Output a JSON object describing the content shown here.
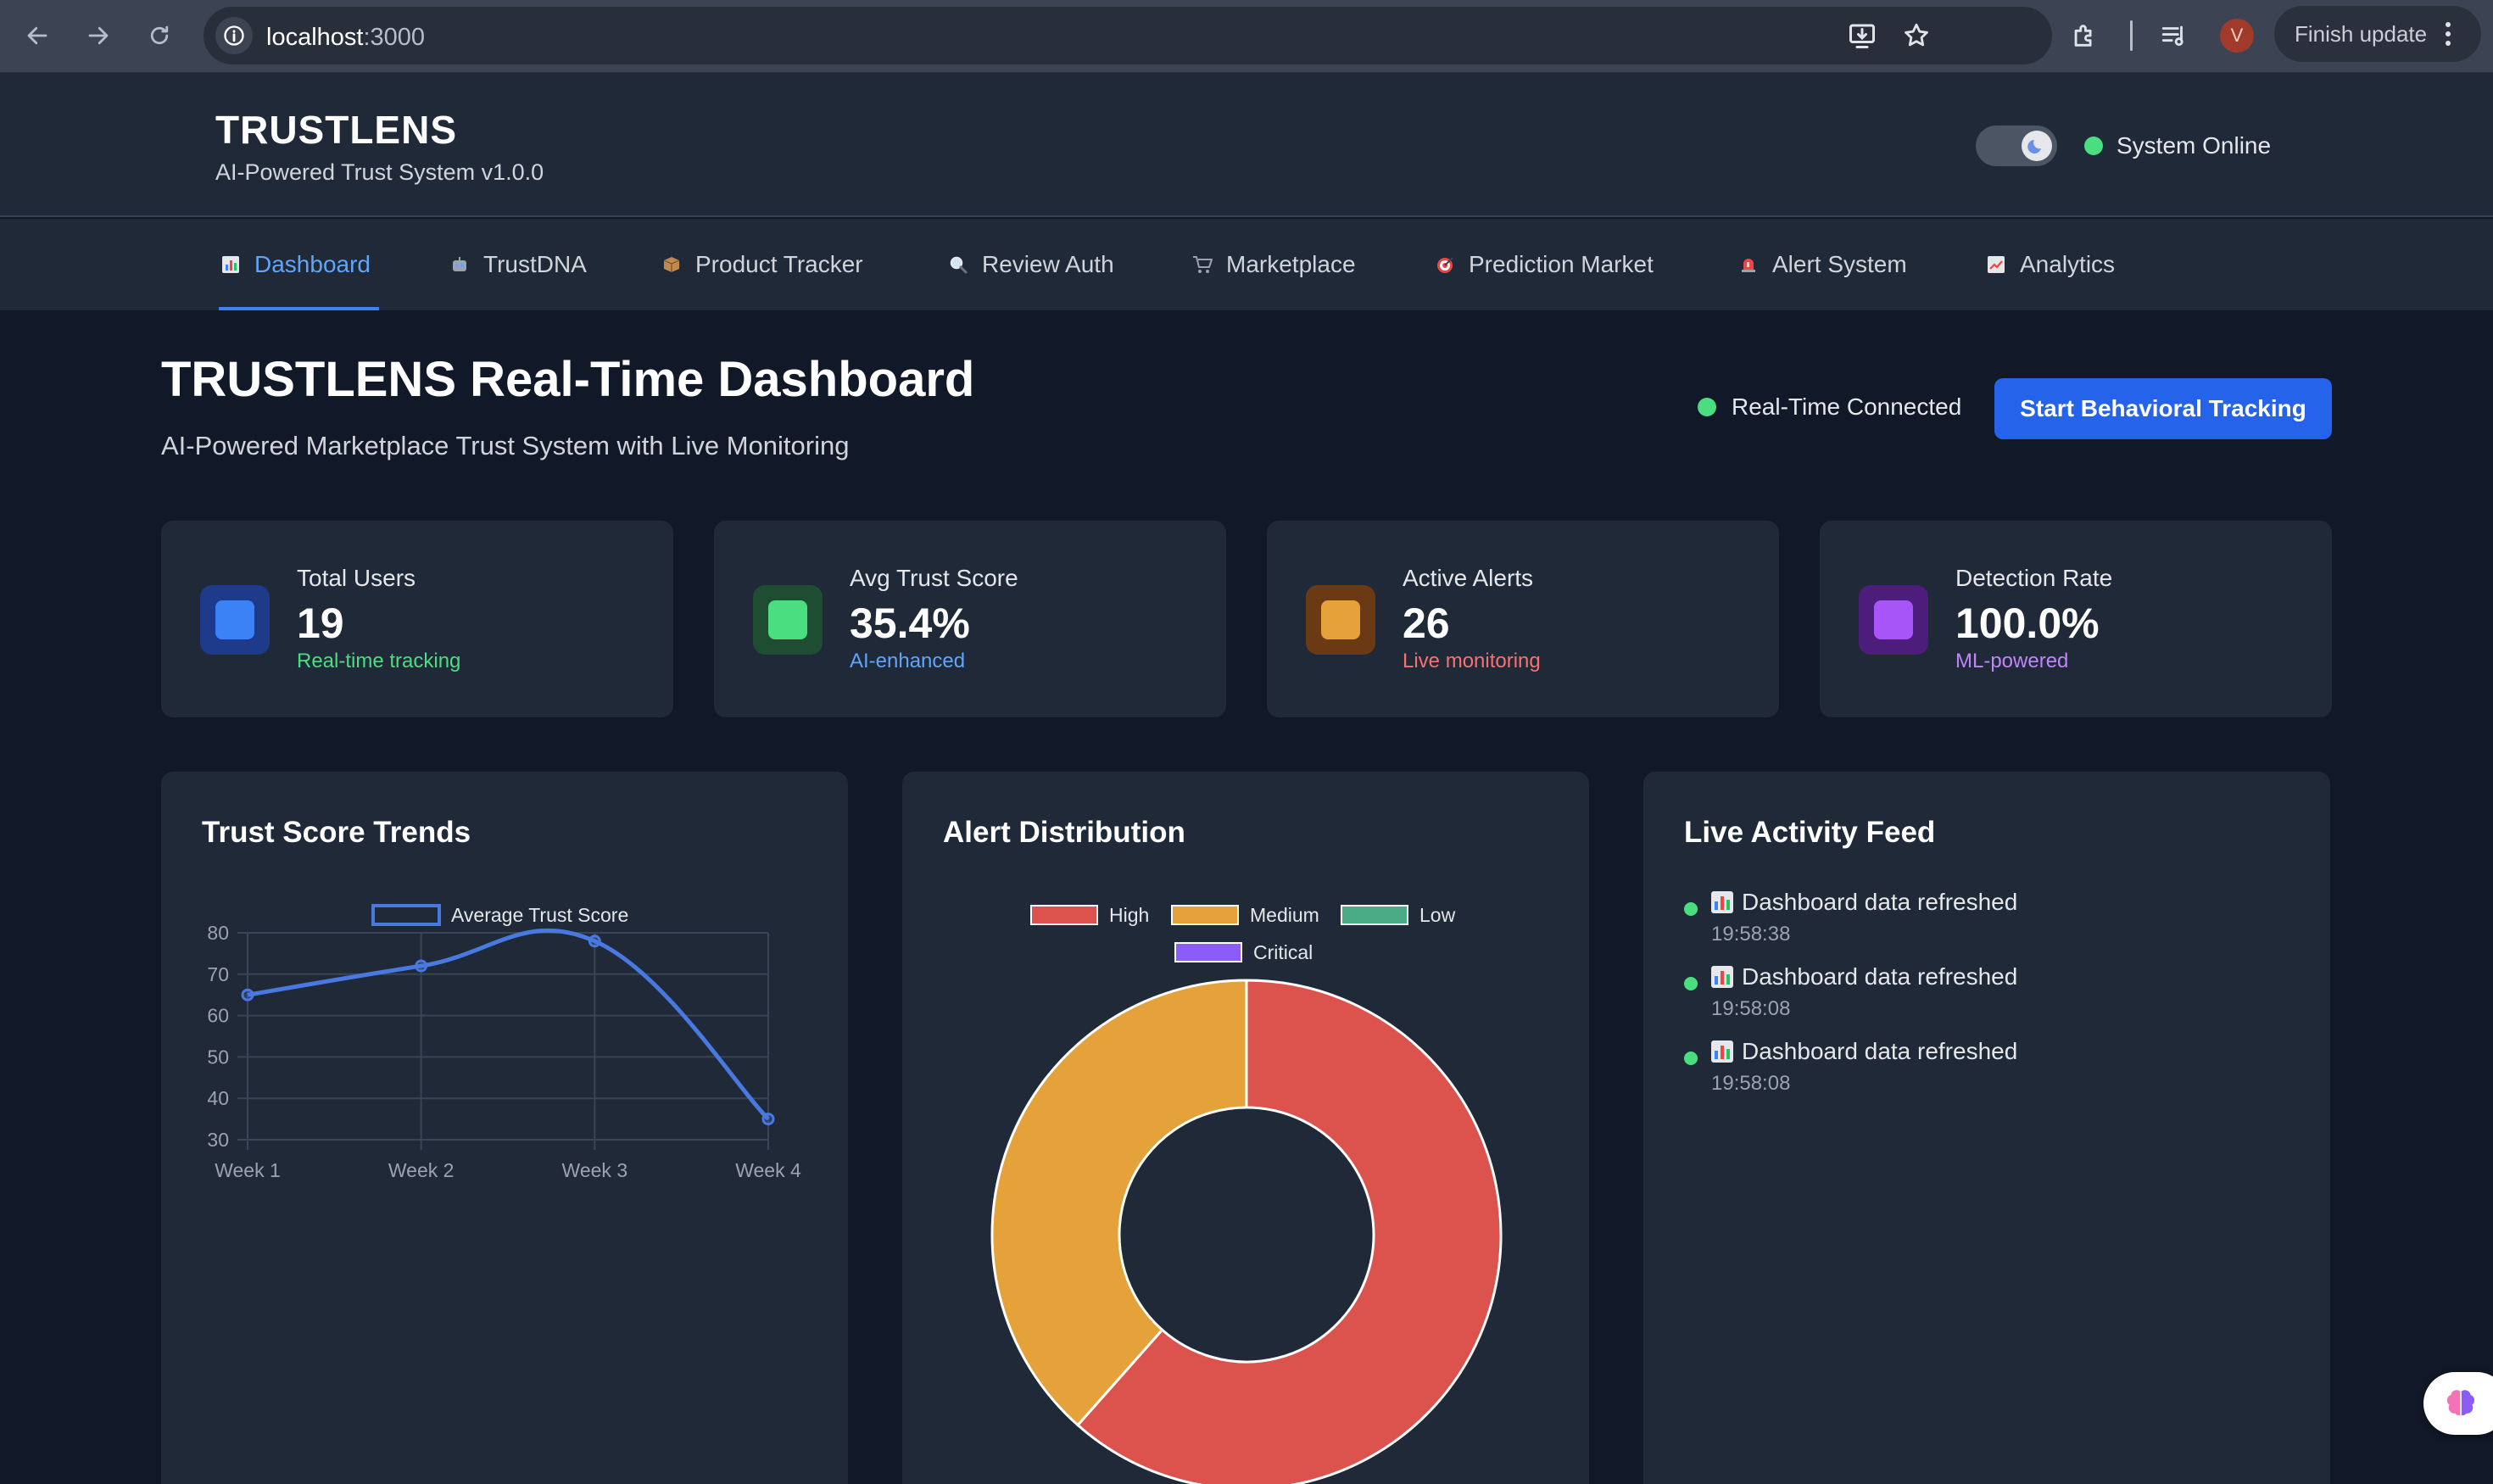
{
  "browser": {
    "url_host": "localhost",
    "url_port": ":3000",
    "profile_initial": "V",
    "finish_update_label": "Finish update"
  },
  "header": {
    "brand": "TRUSTLENS",
    "subtitle": "AI-Powered Trust System v1.0.0",
    "status_text": "System Online"
  },
  "tabs": [
    {
      "label": "Dashboard",
      "icon": "bar-chart-icon",
      "active": true
    },
    {
      "label": "TrustDNA",
      "icon": "robot-icon"
    },
    {
      "label": "Product Tracker",
      "icon": "package-icon"
    },
    {
      "label": "Review Auth",
      "icon": "magnifier-icon"
    },
    {
      "label": "Marketplace",
      "icon": "shopping-cart-icon"
    },
    {
      "label": "Prediction Market",
      "icon": "target-icon"
    },
    {
      "label": "Alert System",
      "icon": "siren-icon"
    },
    {
      "label": "Analytics",
      "icon": "trend-chart-icon"
    }
  ],
  "main": {
    "title": "TRUSTLENS Real-Time Dashboard",
    "subtitle": "AI-Powered Marketplace Trust System with Live Monitoring",
    "connection_status": "Real-Time Connected",
    "start_button": "Start Behavioral Tracking"
  },
  "stats": [
    {
      "label": "Total Users",
      "value": "19",
      "note": "Real-time tracking",
      "color": "#3b82f6",
      "note_color": "#4ade80"
    },
    {
      "label": "Avg Trust Score",
      "value": "35.4%",
      "note": "AI-enhanced",
      "color": "#4ade80",
      "note_color": "#60a5fa"
    },
    {
      "label": "Active Alerts",
      "value": "26",
      "note": "Live monitoring",
      "color": "#f0a83a",
      "note_color": "#f87171"
    },
    {
      "label": "Detection Rate",
      "value": "100.0%",
      "note": "ML-powered",
      "color": "#a855f7",
      "note_color": "#c084fc"
    }
  ],
  "panels": {
    "trends_title": "Trust Score Trends",
    "alerts_title": "Alert Distribution",
    "feed_title": "Live Activity Feed"
  },
  "chart_data": [
    {
      "type": "line",
      "title": "Trust Score Trends",
      "categories": [
        "Week 1",
        "Week 2",
        "Week 3",
        "Week 4"
      ],
      "series": [
        {
          "name": "Average Trust Score",
          "values": [
            65,
            72,
            78,
            35
          ],
          "color": "#4878e0"
        }
      ],
      "ylim": [
        30,
        80
      ],
      "yticks": [
        30,
        40,
        50,
        60,
        70,
        80
      ],
      "grid": true,
      "legend": "top"
    },
    {
      "type": "pie",
      "subtype": "doughnut",
      "title": "Alert Distribution",
      "categories": [
        "High",
        "Medium",
        "Low",
        "Critical"
      ],
      "values": [
        16,
        10,
        0,
        0
      ],
      "colors": [
        "#dc524c",
        "#e5a13a",
        "#4aac84",
        "#8b5cf6"
      ],
      "legend": "top"
    }
  ],
  "feed": [
    {
      "text": "Dashboard data refreshed",
      "time": "19:58:38"
    },
    {
      "text": "Dashboard data refreshed",
      "time": "19:58:08"
    },
    {
      "text": "Dashboard data refreshed",
      "time": "19:58:08"
    }
  ]
}
